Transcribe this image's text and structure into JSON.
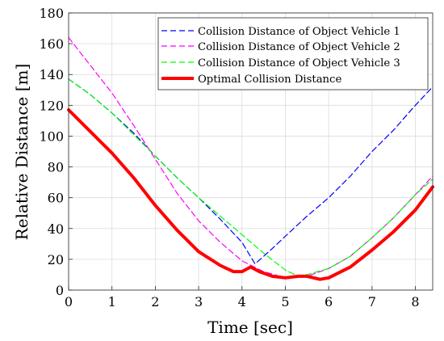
{
  "chart_data": {
    "type": "line",
    "xlabel": "Time [sec]",
    "ylabel": "Relative Distance [m]",
    "xlim": [
      0,
      8.4
    ],
    "ylim": [
      0,
      180
    ],
    "xticks": [
      "0",
      "1",
      "2",
      "3",
      "4",
      "5",
      "6",
      "7",
      "8"
    ],
    "yticks": [
      "0",
      "20",
      "40",
      "60",
      "80",
      "100",
      "120",
      "140",
      "160",
      "180"
    ],
    "grid": true,
    "legend_position": "top-right",
    "series": [
      {
        "name": "Collision Distance of Object Vehicle 1",
        "color": "#0000ff",
        "style": "dashed",
        "x": [
          0,
          0.5,
          1,
          1.5,
          2,
          2.5,
          3,
          3.5,
          4,
          4.3,
          4.7,
          5,
          5.5,
          6,
          6.5,
          7,
          7.5,
          8,
          8.4
        ],
        "y": [
          137,
          127,
          115,
          102,
          87,
          73,
          60,
          46,
          31,
          17,
          27,
          35,
          48,
          60,
          74,
          90,
          104,
          120,
          132
        ]
      },
      {
        "name": "Collision Distance of Object Vehicle 2",
        "color": "#ff00ff",
        "style": "dashed",
        "x": [
          0,
          0.5,
          1,
          1.5,
          2,
          2.5,
          3,
          3.5,
          4,
          4.5,
          5,
          5.5,
          6,
          6.5,
          7,
          7.5,
          8,
          8.4
        ],
        "y": [
          164,
          146,
          128,
          107,
          85,
          63,
          45,
          31,
          19,
          12,
          8,
          9,
          14,
          22,
          34,
          47,
          62,
          74
        ]
      },
      {
        "name": "Collision Distance of Object Vehicle 3",
        "color": "#00ff00",
        "style": "dashed",
        "x": [
          0,
          0.5,
          1,
          1.5,
          2,
          2.5,
          3,
          3.5,
          4,
          4.5,
          5,
          5.3,
          5.5,
          6,
          6.5,
          7,
          7.5,
          8,
          8.4
        ],
        "y": [
          137,
          127,
          115,
          101,
          87,
          73,
          60,
          48,
          36,
          24,
          13,
          9,
          10,
          14,
          22,
          34,
          47,
          62,
          72
        ]
      },
      {
        "name": "Optimal Collision Distance",
        "color": "#ff0000",
        "style": "solid",
        "x": [
          0,
          0.5,
          1,
          1.5,
          2,
          2.5,
          3,
          3.5,
          3.8,
          4,
          4.2,
          4.4,
          4.7,
          5,
          5.3,
          5.5,
          5.8,
          6,
          6.5,
          7,
          7.5,
          8,
          8.4
        ],
        "y": [
          117,
          103,
          89,
          73,
          55,
          39,
          25,
          16,
          12,
          12,
          15,
          12,
          9,
          8,
          9,
          9,
          7,
          8,
          15,
          26,
          38,
          52,
          67
        ]
      }
    ]
  }
}
